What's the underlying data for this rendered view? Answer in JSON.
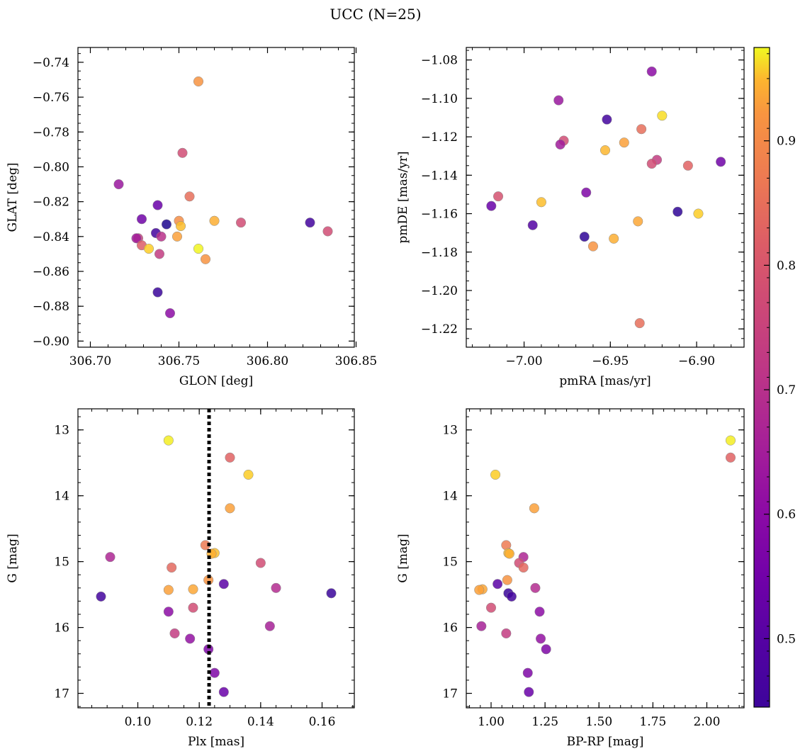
{
  "figure": {
    "title": "UCC (N=25)"
  },
  "colorbar": {
    "colormap": "plasma",
    "range": [
      0.445,
      0.975
    ],
    "ticks": [
      "0.5",
      "0.6",
      "0.7",
      "0.8",
      "0.9"
    ],
    "tick_values": [
      0.5,
      0.6,
      0.7,
      0.8,
      0.9
    ]
  },
  "chart_data": [
    {
      "type": "scatter",
      "xlabel": "GLON [deg]",
      "ylabel": "GLAT [deg]",
      "xlim": [
        306.693,
        306.849
      ],
      "ylim": [
        -0.9035,
        -0.7315
      ],
      "y_inverted": false,
      "xticks": [
        306.7,
        306.75,
        306.8,
        306.85
      ],
      "xtick_labels": [
        "306.70",
        "306.75",
        "306.80",
        "306.85"
      ],
      "xminor": 0.01,
      "yticks": [
        -0.9,
        -0.88,
        -0.86,
        -0.84,
        -0.82,
        -0.8,
        -0.78,
        -0.76,
        -0.74
      ],
      "ytick_labels": [
        "−0.90",
        "−0.88",
        "−0.86",
        "−0.84",
        "−0.82",
        "−0.80",
        "−0.78",
        "−0.76",
        "−0.74"
      ],
      "yminor": 0.005,
      "points": [
        {
          "x": 306.761,
          "y": -0.751,
          "c": 0.84
        },
        {
          "x": 306.752,
          "y": -0.792,
          "c": 0.72
        },
        {
          "x": 306.716,
          "y": -0.81,
          "c": 0.62
        },
        {
          "x": 306.756,
          "y": -0.817,
          "c": 0.78
        },
        {
          "x": 306.738,
          "y": -0.822,
          "c": 0.55
        },
        {
          "x": 306.729,
          "y": -0.83,
          "c": 0.56
        },
        {
          "x": 306.75,
          "y": -0.831,
          "c": 0.83
        },
        {
          "x": 306.77,
          "y": -0.831,
          "c": 0.88
        },
        {
          "x": 306.785,
          "y": -0.832,
          "c": 0.72
        },
        {
          "x": 306.824,
          "y": -0.832,
          "c": 0.5
        },
        {
          "x": 306.751,
          "y": -0.834,
          "c": 0.9
        },
        {
          "x": 306.743,
          "y": -0.833,
          "c": 0.46
        },
        {
          "x": 306.834,
          "y": -0.837,
          "c": 0.72
        },
        {
          "x": 306.737,
          "y": -0.838,
          "c": 0.5
        },
        {
          "x": 306.749,
          "y": -0.84,
          "c": 0.86
        },
        {
          "x": 306.74,
          "y": -0.84,
          "c": 0.67
        },
        {
          "x": 306.727,
          "y": -0.841,
          "c": 0.7
        },
        {
          "x": 306.726,
          "y": -0.841,
          "c": 0.63
        },
        {
          "x": 306.729,
          "y": -0.845,
          "c": 0.75
        },
        {
          "x": 306.733,
          "y": -0.847,
          "c": 0.92
        },
        {
          "x": 306.761,
          "y": -0.847,
          "c": 0.97
        },
        {
          "x": 306.739,
          "y": -0.85,
          "c": 0.69
        },
        {
          "x": 306.765,
          "y": -0.853,
          "c": 0.84
        },
        {
          "x": 306.738,
          "y": -0.872,
          "c": 0.49
        },
        {
          "x": 306.745,
          "y": -0.884,
          "c": 0.6
        }
      ]
    },
    {
      "type": "scatter",
      "xlabel": "pmRA [mas/yr]",
      "ylabel": "pmDE [mas/yr]",
      "xlim": [
        -7.0335,
        -6.8725
      ],
      "ylim": [
        -1.2295,
        -1.0735
      ],
      "y_inverted": false,
      "xticks": [
        -7.0,
        -6.95,
        -6.9
      ],
      "xtick_labels": [
        "−7.00",
        "−6.95",
        "−6.90"
      ],
      "xminor": 0.01,
      "yticks": [
        -1.22,
        -1.2,
        -1.18,
        -1.16,
        -1.14,
        -1.12,
        -1.1,
        -1.08
      ],
      "ytick_labels": [
        "−1.22",
        "−1.20",
        "−1.18",
        "−1.16",
        "−1.14",
        "−1.12",
        "−1.10",
        "−1.08"
      ],
      "yminor": 0.005,
      "points": [
        {
          "x": -6.926,
          "y": -1.086,
          "c": 0.6
        },
        {
          "x": -6.98,
          "y": -1.101,
          "c": 0.62
        },
        {
          "x": -6.952,
          "y": -1.111,
          "c": 0.5
        },
        {
          "x": -6.92,
          "y": -1.109,
          "c": 0.94
        },
        {
          "x": -6.932,
          "y": -1.116,
          "c": 0.78
        },
        {
          "x": -6.977,
          "y": -1.122,
          "c": 0.72
        },
        {
          "x": -6.979,
          "y": -1.124,
          "c": 0.63
        },
        {
          "x": -6.942,
          "y": -1.123,
          "c": 0.86
        },
        {
          "x": -6.953,
          "y": -1.127,
          "c": 0.89
        },
        {
          "x": -6.923,
          "y": -1.132,
          "c": 0.69
        },
        {
          "x": -6.926,
          "y": -1.134,
          "c": 0.72
        },
        {
          "x": -6.905,
          "y": -1.135,
          "c": 0.76
        },
        {
          "x": -6.886,
          "y": -1.133,
          "c": 0.56
        },
        {
          "x": -6.964,
          "y": -1.149,
          "c": 0.58
        },
        {
          "x": -7.015,
          "y": -1.151,
          "c": 0.73
        },
        {
          "x": -7.019,
          "y": -1.156,
          "c": 0.55
        },
        {
          "x": -6.99,
          "y": -1.154,
          "c": 0.9
        },
        {
          "x": -6.911,
          "y": -1.159,
          "c": 0.48
        },
        {
          "x": -6.899,
          "y": -1.16,
          "c": 0.92
        },
        {
          "x": -6.995,
          "y": -1.166,
          "c": 0.52
        },
        {
          "x": -6.934,
          "y": -1.164,
          "c": 0.87
        },
        {
          "x": -6.965,
          "y": -1.172,
          "c": 0.48
        },
        {
          "x": -6.948,
          "y": -1.173,
          "c": 0.88
        },
        {
          "x": -6.96,
          "y": -1.177,
          "c": 0.84
        },
        {
          "x": -6.933,
          "y": -1.217,
          "c": 0.78
        }
      ]
    },
    {
      "type": "scatter",
      "xlabel": "Plx [mas]",
      "ylabel": "G [mag]",
      "xlim": [
        0.0805,
        0.1705
      ],
      "ylim": [
        12.68,
        17.22
      ],
      "y_inverted": true,
      "xticks": [
        0.1,
        0.12,
        0.14,
        0.16
      ],
      "xtick_labels": [
        "0.10",
        "0.12",
        "0.14",
        "0.16"
      ],
      "xminor": 0.005,
      "yticks": [
        13,
        14,
        15,
        16,
        17
      ],
      "ytick_labels": [
        "13",
        "14",
        "15",
        "16",
        "17"
      ],
      "yminor": 0.2,
      "vline": {
        "x": 0.1232,
        "style": "dotted"
      },
      "points": [
        {
          "x": 0.11,
          "y": 13.16,
          "c": 0.96
        },
        {
          "x": 0.13,
          "y": 13.42,
          "c": 0.76
        },
        {
          "x": 0.136,
          "y": 13.68,
          "c": 0.92
        },
        {
          "x": 0.13,
          "y": 14.19,
          "c": 0.86
        },
        {
          "x": 0.122,
          "y": 14.75,
          "c": 0.8
        },
        {
          "x": 0.125,
          "y": 14.87,
          "c": 0.9
        },
        {
          "x": 0.124,
          "y": 14.88,
          "c": 0.88
        },
        {
          "x": 0.091,
          "y": 14.93,
          "c": 0.65
        },
        {
          "x": 0.14,
          "y": 15.02,
          "c": 0.72
        },
        {
          "x": 0.111,
          "y": 15.09,
          "c": 0.77
        },
        {
          "x": 0.123,
          "y": 15.28,
          "c": 0.84
        },
        {
          "x": 0.128,
          "y": 15.34,
          "c": 0.53
        },
        {
          "x": 0.145,
          "y": 15.4,
          "c": 0.66
        },
        {
          "x": 0.118,
          "y": 15.42,
          "c": 0.87
        },
        {
          "x": 0.11,
          "y": 15.43,
          "c": 0.86
        },
        {
          "x": 0.163,
          "y": 15.48,
          "c": 0.49
        },
        {
          "x": 0.088,
          "y": 15.53,
          "c": 0.5
        },
        {
          "x": 0.118,
          "y": 15.7,
          "c": 0.72
        },
        {
          "x": 0.11,
          "y": 15.76,
          "c": 0.6
        },
        {
          "x": 0.143,
          "y": 15.98,
          "c": 0.64
        },
        {
          "x": 0.112,
          "y": 16.09,
          "c": 0.69
        },
        {
          "x": 0.117,
          "y": 16.17,
          "c": 0.61
        },
        {
          "x": 0.123,
          "y": 16.33,
          "c": 0.58
        },
        {
          "x": 0.125,
          "y": 16.69,
          "c": 0.58
        },
        {
          "x": 0.128,
          "y": 16.98,
          "c": 0.55
        }
      ]
    },
    {
      "type": "scatter",
      "xlabel": "BP-RP [mag]",
      "ylabel": "G [mag]",
      "xlim": [
        0.885,
        2.1725
      ],
      "ylim": [
        12.68,
        17.22
      ],
      "y_inverted": true,
      "xticks": [
        1.0,
        1.25,
        1.5,
        1.75,
        2.0
      ],
      "xtick_labels": [
        "1.00",
        "1.25",
        "1.50",
        "1.75",
        "2.00"
      ],
      "xminor": 0.05,
      "yticks": [
        13,
        14,
        15,
        16,
        17
      ],
      "ytick_labels": [
        "13",
        "14",
        "15",
        "16",
        "17"
      ],
      "yminor": 0.2,
      "points": [
        {
          "x": 2.11,
          "y": 13.16,
          "c": 0.96
        },
        {
          "x": 2.11,
          "y": 13.42,
          "c": 0.76
        },
        {
          "x": 1.02,
          "y": 13.68,
          "c": 0.92
        },
        {
          "x": 1.2,
          "y": 14.19,
          "c": 0.86
        },
        {
          "x": 1.07,
          "y": 14.75,
          "c": 0.8
        },
        {
          "x": 1.08,
          "y": 14.87,
          "c": 0.9
        },
        {
          "x": 1.085,
          "y": 14.88,
          "c": 0.88
        },
        {
          "x": 1.15,
          "y": 14.93,
          "c": 0.65
        },
        {
          "x": 1.13,
          "y": 15.02,
          "c": 0.72
        },
        {
          "x": 1.15,
          "y": 15.09,
          "c": 0.77
        },
        {
          "x": 1.075,
          "y": 15.28,
          "c": 0.84
        },
        {
          "x": 1.03,
          "y": 15.34,
          "c": 0.53
        },
        {
          "x": 1.205,
          "y": 15.4,
          "c": 0.66
        },
        {
          "x": 0.96,
          "y": 15.42,
          "c": 0.87
        },
        {
          "x": 0.945,
          "y": 15.43,
          "c": 0.86
        },
        {
          "x": 1.08,
          "y": 15.48,
          "c": 0.49
        },
        {
          "x": 1.095,
          "y": 15.53,
          "c": 0.5
        },
        {
          "x": 1.0,
          "y": 15.7,
          "c": 0.72
        },
        {
          "x": 1.225,
          "y": 15.76,
          "c": 0.6
        },
        {
          "x": 0.955,
          "y": 15.98,
          "c": 0.64
        },
        {
          "x": 1.07,
          "y": 16.09,
          "c": 0.69
        },
        {
          "x": 1.23,
          "y": 16.17,
          "c": 0.61
        },
        {
          "x": 1.255,
          "y": 16.33,
          "c": 0.58
        },
        {
          "x": 1.17,
          "y": 16.69,
          "c": 0.58
        },
        {
          "x": 1.175,
          "y": 16.98,
          "c": 0.55
        }
      ]
    }
  ]
}
